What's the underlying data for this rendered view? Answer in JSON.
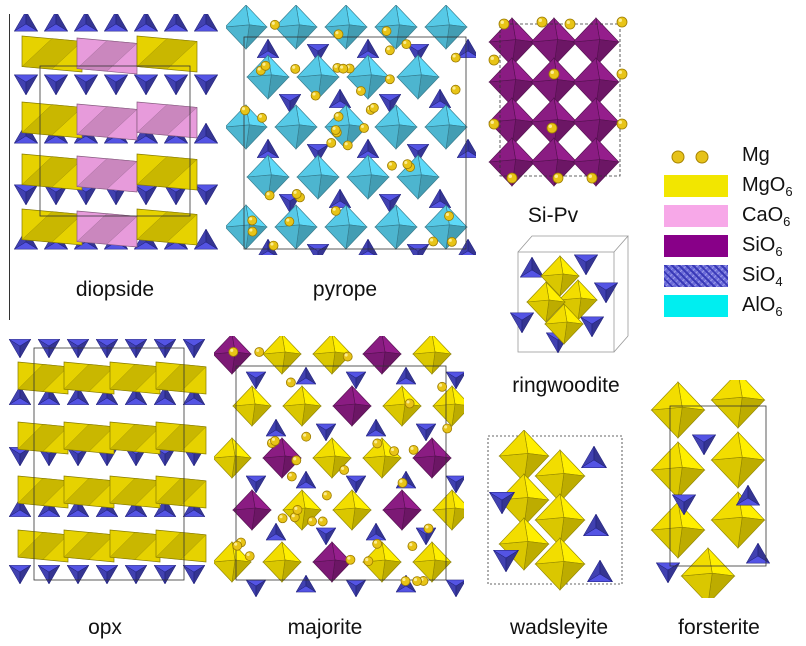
{
  "colors": {
    "mg": "#e6c21a",
    "mgo6": "#f2dd00",
    "cao6": "#f3a3e6",
    "sio6": "#8a1c82",
    "sio4": "#4c4ccf",
    "alo6": "#56c9e6"
  },
  "labels": {
    "diopside": "diopside",
    "pyrope": "pyrope",
    "sipv": "Si-Pv",
    "ringwoodite": "ringwoodite",
    "opx": "opx",
    "majorite": "majorite",
    "wadsleyite": "wadsleyite",
    "forsterite": "forsterite"
  },
  "legend": {
    "mg": "Mg",
    "mgo6_base": "MgO",
    "mgo6_sub": "6",
    "cao6_base": "CaO",
    "cao6_sub": "6",
    "sio6_base": "SiO",
    "sio6_sub": "6",
    "sio4_base": "SiO",
    "sio4_sub": "4",
    "alo6_base": "AlO",
    "alo6_sub": "6"
  }
}
